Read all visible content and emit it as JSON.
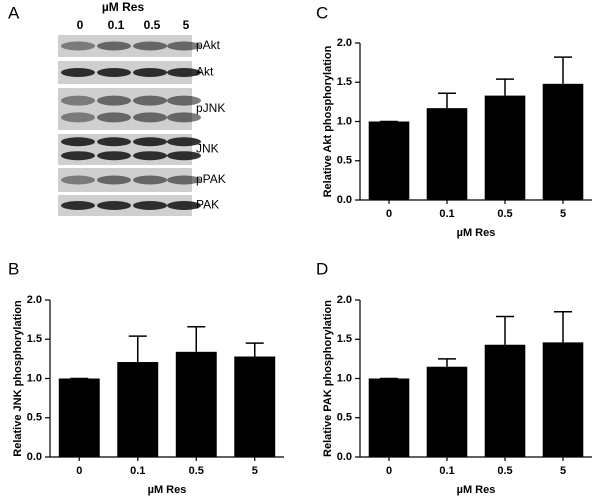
{
  "blot": {
    "panel": "A",
    "axis_label": "µM Res",
    "lanes": [
      "0",
      "0.1",
      "0.5",
      "5"
    ],
    "rows": [
      "pAkt",
      "Akt",
      "pJNK",
      "JNK",
      "pPAK",
      "PAK"
    ]
  },
  "chart_data": [
    {
      "type": "bar",
      "panel": "C",
      "ylabel": "Relative Akt phosphorylation",
      "xlabel": "µM Res",
      "categories": [
        "0",
        "0.1",
        "0.5",
        "5"
      ],
      "values": [
        1.0,
        1.17,
        1.33,
        1.48
      ],
      "errors": [
        0,
        0.19,
        0.21,
        0.34
      ],
      "color": "#000000",
      "ylim": [
        0,
        2
      ],
      "yticks": [
        {
          "value": 0,
          "label": "0.0"
        },
        0.5,
        {
          "value": 1,
          "label": "1.0"
        },
        1.5,
        {
          "value": 2,
          "label": "2.0"
        }
      ]
    },
    {
      "type": "bar",
      "panel": "B",
      "ylabel": "Relative JNK phosphorylation",
      "xlabel": "µM Res",
      "categories": [
        "0",
        "0.1",
        "0.5",
        "5"
      ],
      "values": [
        1.0,
        1.21,
        1.34,
        1.28
      ],
      "errors": [
        0,
        0.33,
        0.32,
        0.17
      ],
      "color": "#000000",
      "ylim": [
        0,
        2
      ],
      "yticks": [
        {
          "value": 0,
          "label": "0.0"
        },
        0.5,
        {
          "value": 1,
          "label": "1.0"
        },
        1.5,
        {
          "value": 2,
          "label": "2.0"
        }
      ]
    },
    {
      "type": "bar",
      "panel": "D",
      "ylabel": "Relative PAK phosphorylation",
      "xlabel": "µM Res",
      "categories": [
        "0",
        "0.1",
        "0.5",
        "5"
      ],
      "values": [
        1.0,
        1.15,
        1.43,
        1.46
      ],
      "errors": [
        0,
        0.1,
        0.36,
        0.39
      ],
      "color": "#000000",
      "ylim": [
        0,
        2
      ],
      "yticks": [
        {
          "value": 0,
          "label": "0.0"
        },
        0.5,
        {
          "value": 1,
          "label": "1.0"
        },
        1.5,
        {
          "value": 2,
          "label": "2.0"
        }
      ]
    }
  ]
}
